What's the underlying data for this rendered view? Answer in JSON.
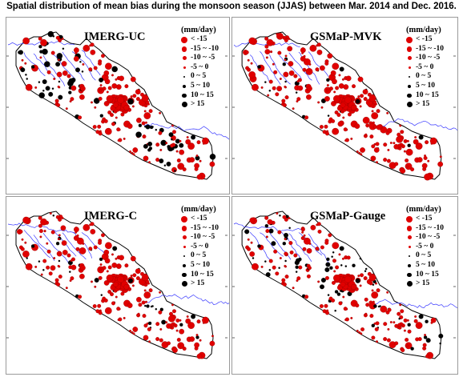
{
  "figure_title": "Spatial distribution of mean bias during the monsoon season (JJAS) between Mar. 2014 and Dec. 2016.",
  "panels": [
    {
      "title": "IMERG-UC",
      "pattern": "uc"
    },
    {
      "title": "GSMaP-MVK",
      "pattern": "mvk"
    },
    {
      "title": "IMERG-C",
      "pattern": "c"
    },
    {
      "title": "GSMaP-Gauge",
      "pattern": "gauge"
    }
  ],
  "legend": {
    "unit": "(mm/day)",
    "classes": [
      {
        "label": "< -15",
        "color": "#e00000"
      },
      {
        "label": "-15 ~ -10",
        "color": "#e00000"
      },
      {
        "label": "-10 ~ -5",
        "color": "#e00000"
      },
      {
        "label": "-5 ~ 0",
        "color": "#e00000"
      },
      {
        "label": "0 ~ 5",
        "color": "#000000"
      },
      {
        "label": "5 ~ 10",
        "color": "#000000"
      },
      {
        "label": "10 ~ 15",
        "color": "#000000"
      },
      {
        "label": "> 15",
        "color": "#000000"
      }
    ]
  },
  "colors": {
    "negative": "#e00000",
    "positive": "#000000",
    "river": "#3a3aff",
    "border": "#000000",
    "panel_frame": "#9a9a9a"
  }
}
